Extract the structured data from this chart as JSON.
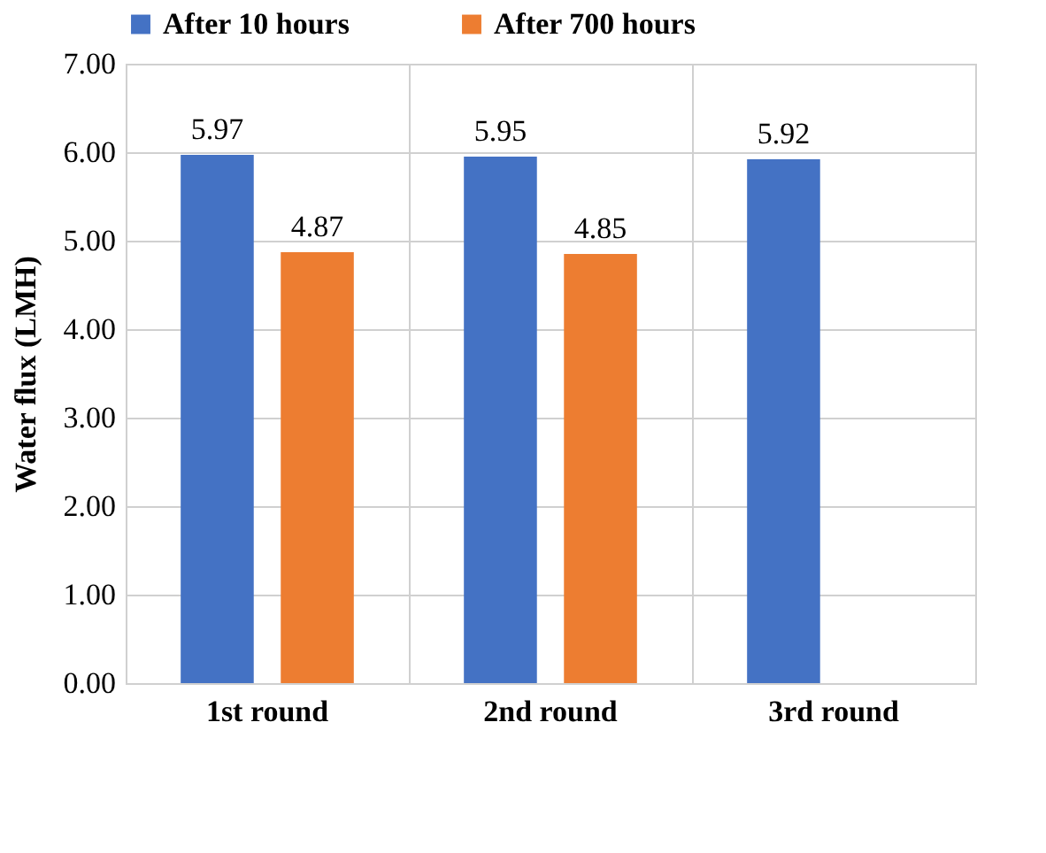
{
  "chart_data": {
    "type": "bar",
    "ylabel": "Water flux (LMH)",
    "categories": [
      "1st round",
      "2nd round",
      "3rd round"
    ],
    "series": [
      {
        "name": "After 10 hours",
        "color": "#4472c4",
        "values": [
          5.97,
          5.95,
          5.92
        ]
      },
      {
        "name": "After 700 hours",
        "color": "#ed7d31",
        "values": [
          4.87,
          4.85,
          null
        ]
      }
    ],
    "ylim": [
      0,
      7
    ],
    "yticks": [
      {
        "value": 0,
        "label": "0.00"
      },
      {
        "value": 1,
        "label": "1.00"
      },
      {
        "value": 2,
        "label": "2.00"
      },
      {
        "value": 3,
        "label": "3.00"
      },
      {
        "value": 4,
        "label": "4.00"
      },
      {
        "value": 5,
        "label": "5.00"
      },
      {
        "value": 6,
        "label": "6.00"
      },
      {
        "value": 7,
        "label": "7.00"
      }
    ],
    "grid": true,
    "legend": "top",
    "data_labels": true
  }
}
